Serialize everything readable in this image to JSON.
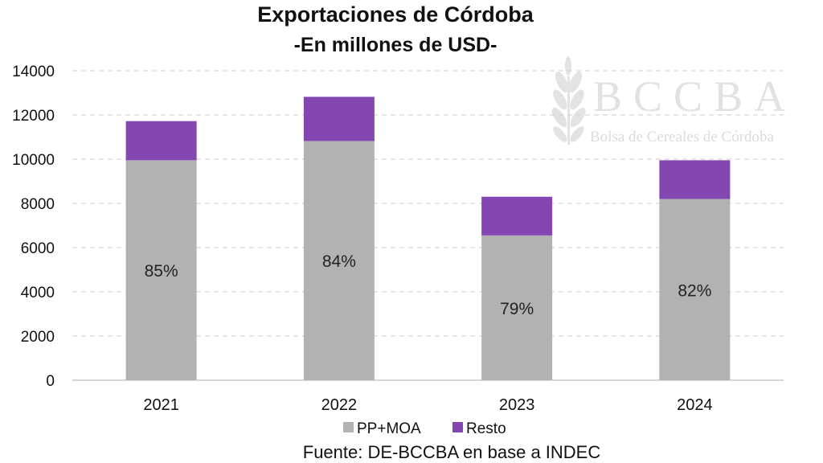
{
  "chart_data": {
    "type": "bar",
    "stacked": true,
    "title": "Exportaciones de Córdoba",
    "subtitle": "-En millones de USD-",
    "xlabel": "",
    "ylabel": "",
    "categories": [
      "2021",
      "2022",
      "2023",
      "2024"
    ],
    "series": [
      {
        "name": "PP+MOA",
        "values": [
          9950,
          10820,
          6550,
          8200
        ],
        "color": "#b2b2b2"
      },
      {
        "name": "Resto",
        "values": [
          1770,
          2000,
          1750,
          1750
        ],
        "color": "#8446b0"
      }
    ],
    "bar_labels": [
      "85%",
      "84%",
      "79%",
      "82%"
    ],
    "ylim": [
      0,
      14000
    ],
    "yticks": [
      "0",
      "2000",
      "4000",
      "6000",
      "8000",
      "10000",
      "12000",
      "14000"
    ],
    "grid": true,
    "legend_position": "bottom",
    "source": "Fuente: DE-BCCBA en base a INDEC"
  },
  "watermark": {
    "logo_text": "BCCBA",
    "subtitle": "Bolsa de Cereales de Córdoba",
    "icon": "wheat-icon"
  }
}
